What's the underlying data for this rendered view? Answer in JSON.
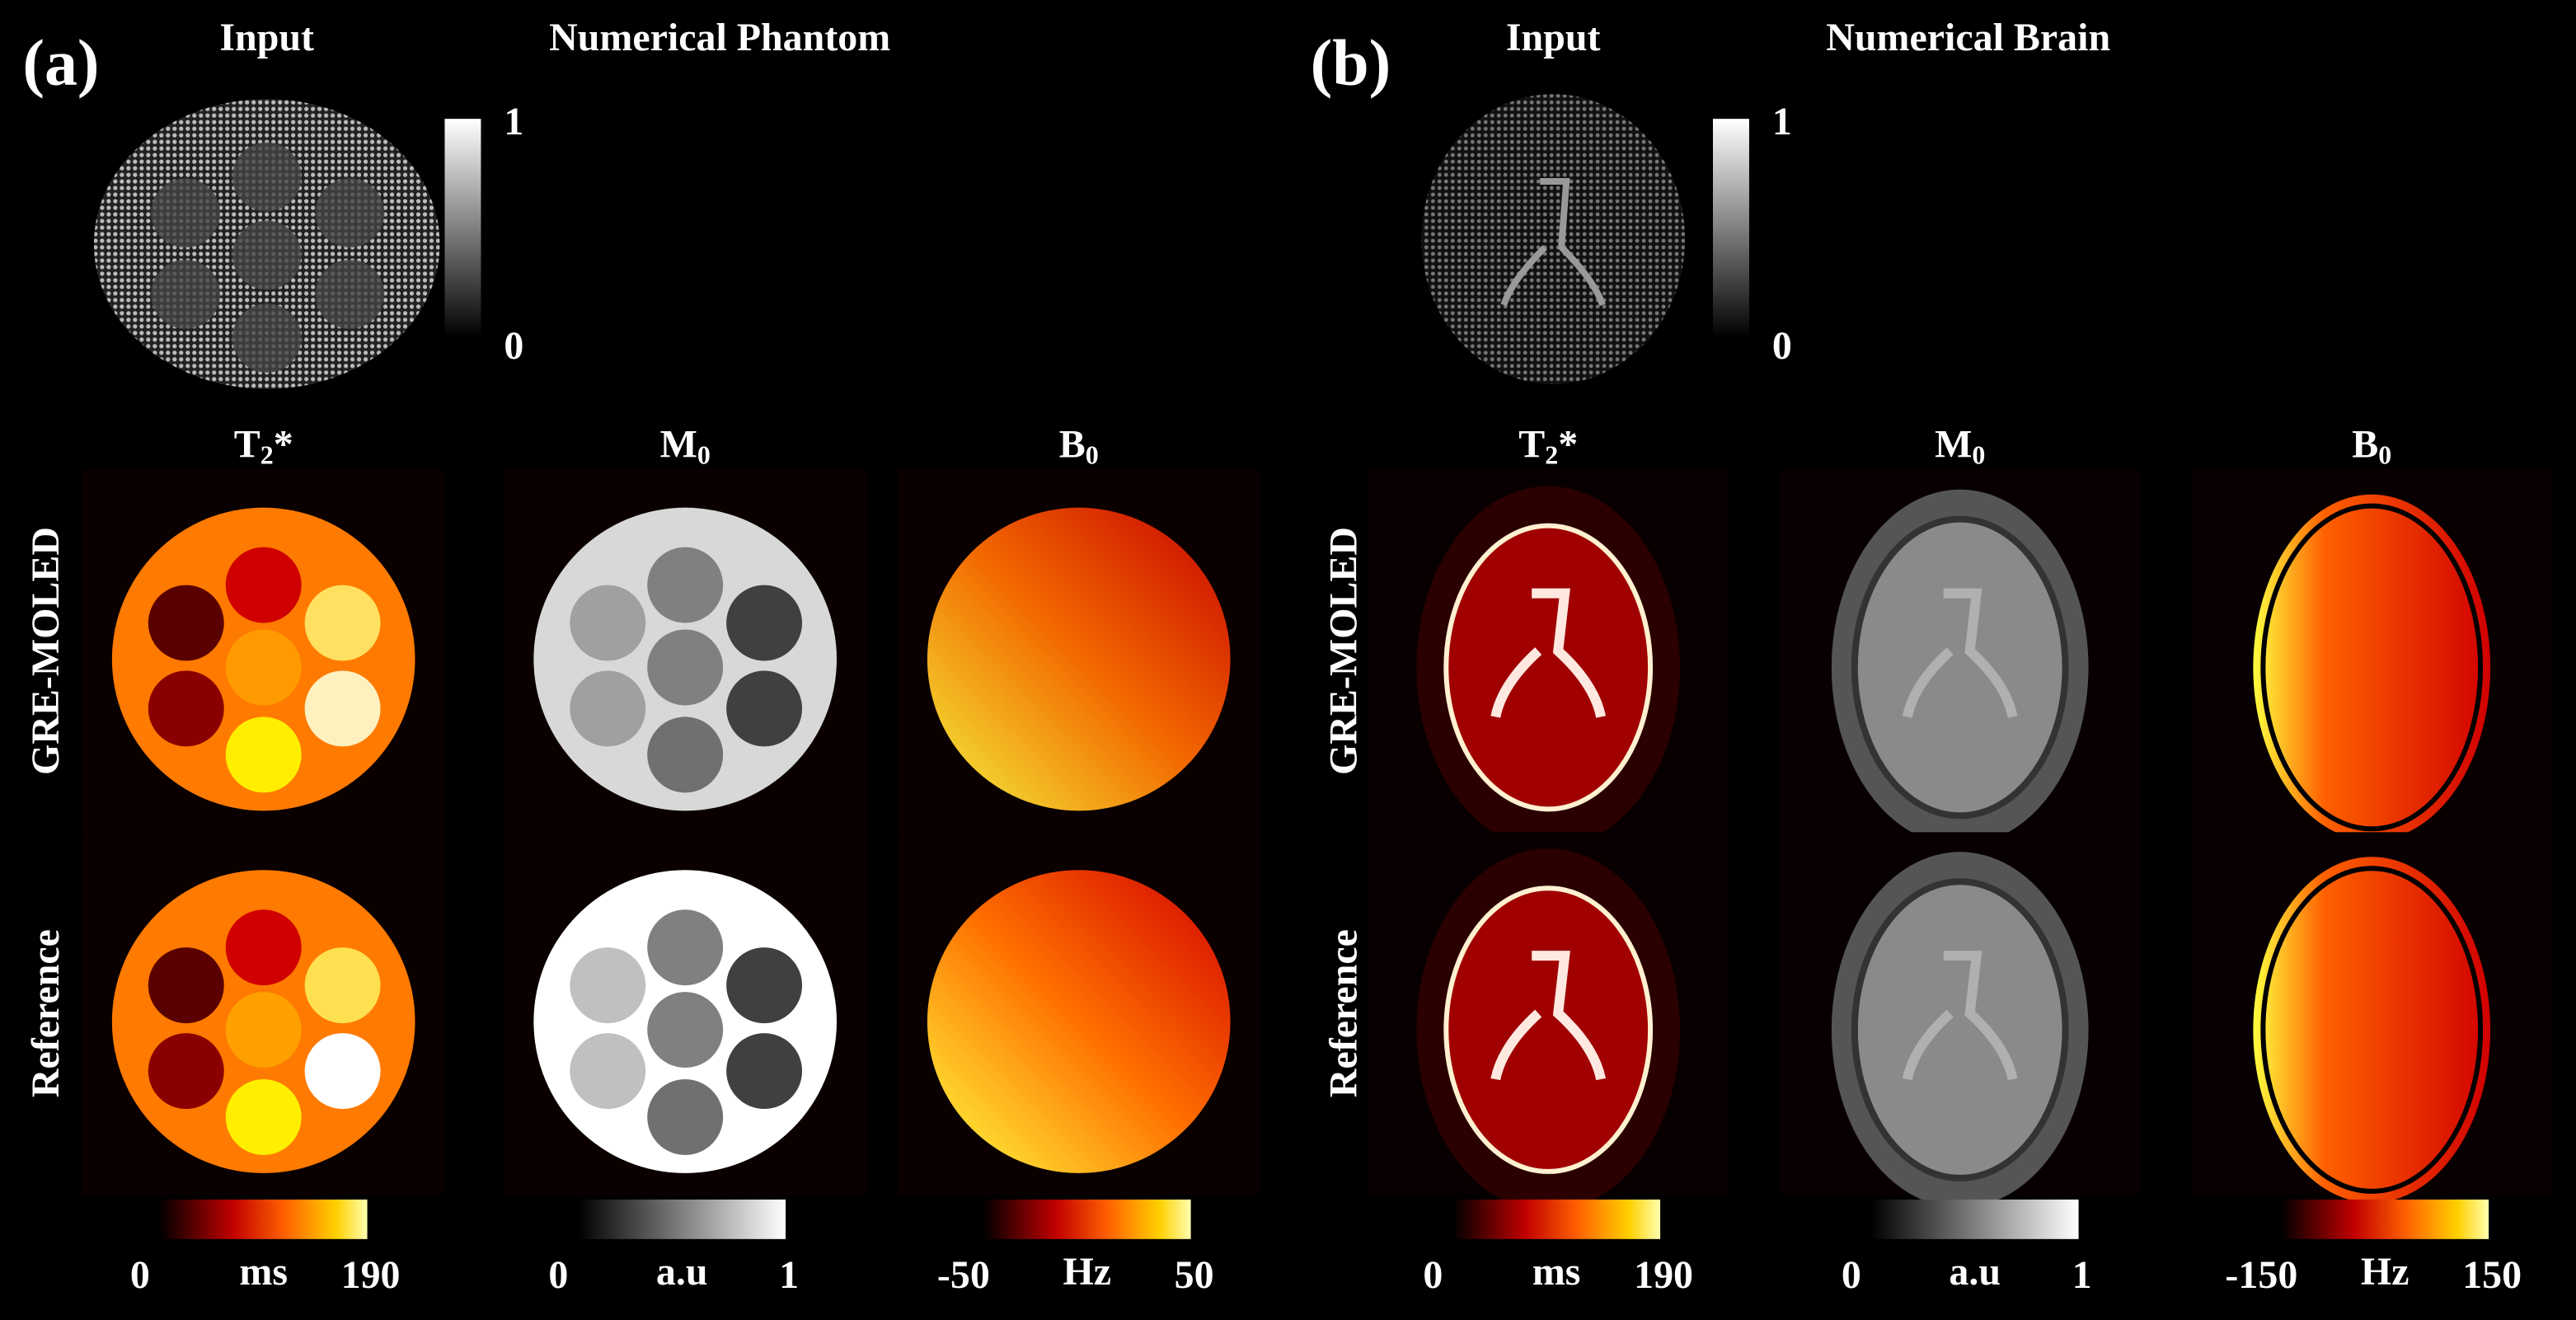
{
  "panels": [
    {
      "label": "(a)",
      "input_title": "Input",
      "name": "Numerical Phantom",
      "input_colorbar": {
        "max": 1,
        "min": 0
      },
      "rows": [
        "GRE-MOLED",
        "Reference"
      ],
      "columns": [
        {
          "title": "T",
          "sub": "2",
          "tail": "*",
          "colorbar": {
            "min": 0,
            "unit": "ms",
            "max": 190
          }
        },
        {
          "title": "M",
          "sub": "0",
          "colorbar": {
            "min": 0,
            "unit": "a.u",
            "max": 1
          }
        },
        {
          "title": "B",
          "sub": "0",
          "colorbar": {
            "min": -50,
            "unit": "Hz",
            "max": 50
          }
        }
      ]
    },
    {
      "label": "(b)",
      "input_title": "Input",
      "name": "Numerical Brain",
      "input_colorbar": {
        "max": 1,
        "min": 0
      },
      "rows": [
        "GRE-MOLED",
        "Reference"
      ],
      "columns": [
        {
          "title": "T",
          "sub": "2",
          "tail": "*",
          "colorbar": {
            "min": 0,
            "unit": "ms",
            "max": 190
          }
        },
        {
          "title": "M",
          "sub": "0",
          "colorbar": {
            "min": 0,
            "unit": "a.u",
            "max": 1
          }
        },
        {
          "title": "B",
          "sub": "0",
          "colorbar": {
            "min": -150,
            "unit": "Hz",
            "max": 150
          }
        }
      ]
    }
  ]
}
